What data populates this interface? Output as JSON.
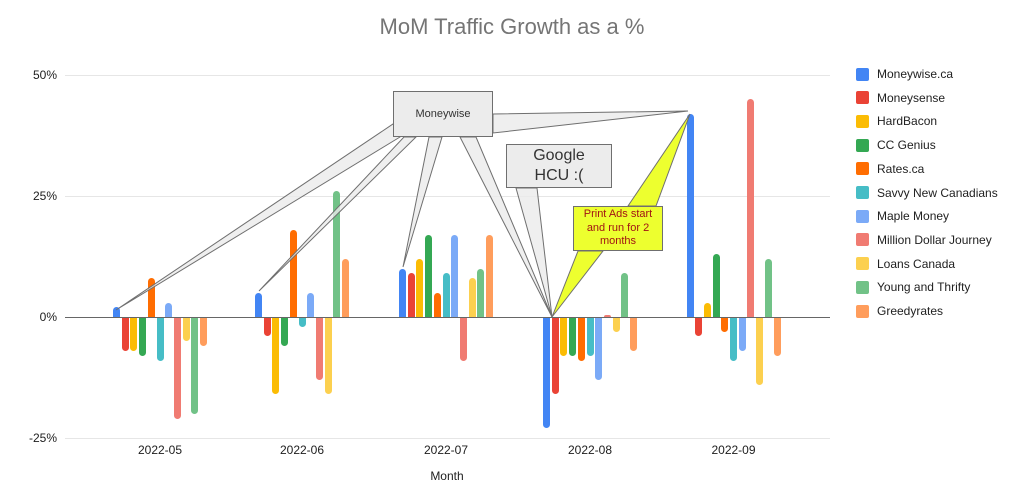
{
  "chart_data": {
    "type": "bar",
    "title": "MoM Traffic Growth as a %",
    "xlabel": "Month",
    "ylabel": "",
    "ylim": [
      -25,
      50
    ],
    "grid": true,
    "legend_position": "right",
    "y_tick_values": [
      50,
      25,
      0,
      -25
    ],
    "y_tick_labels": [
      "50%",
      "25%",
      "0%",
      "-25%"
    ],
    "categories": [
      "2022-05",
      "2022-06",
      "2022-07",
      "2022-08",
      "2022-09"
    ],
    "series": [
      {
        "name": "Moneywise.ca",
        "color": "#4285F4",
        "values": [
          2,
          5,
          10,
          -23,
          42
        ]
      },
      {
        "name": "Moneysense",
        "color": "#EA4335",
        "values": [
          -7,
          -4,
          9,
          -16,
          -4
        ]
      },
      {
        "name": "HardBacon",
        "color": "#FBBC04",
        "values": [
          -7,
          -16,
          12,
          -8,
          3
        ]
      },
      {
        "name": "CC Genius",
        "color": "#34A853",
        "values": [
          -8,
          -6,
          17,
          -8,
          13
        ]
      },
      {
        "name": "Rates.ca",
        "color": "#FF6D01",
        "values": [
          8,
          18,
          5,
          -9,
          -3
        ]
      },
      {
        "name": "Savvy New Canadians",
        "color": "#46BDC6",
        "values": [
          -9,
          -2,
          9,
          -8,
          -9
        ]
      },
      {
        "name": "Maple Money",
        "color": "#7BAAF7",
        "values": [
          3,
          5,
          17,
          -13,
          -7
        ]
      },
      {
        "name": "Million Dollar Journey",
        "color": "#F07B72",
        "values": [
          -21,
          -13,
          -9,
          0.5,
          45
        ]
      },
      {
        "name": "Loans Canada",
        "color": "#FCD04F",
        "values": [
          -5,
          -16,
          8,
          -3,
          -14
        ]
      },
      {
        "name": "Young and Thrifty",
        "color": "#71C287",
        "values": [
          -20,
          26,
          10,
          9,
          12
        ]
      },
      {
        "name": "Greedyrates",
        "color": "#FF9D5C",
        "values": [
          -6,
          12,
          17,
          -7,
          -8
        ]
      }
    ],
    "annotations": [
      {
        "text": "Moneywise",
        "style": "gray-callout",
        "points_to": "Moneywise.ca bars in all five months"
      },
      {
        "text": "Google\nHCU :(",
        "style": "gray-callout",
        "points_to": "2022-08 Moneywise.ca bar"
      },
      {
        "text": "Print Ads start and run for 2 months",
        "style": "yellow-callout",
        "points_to": "2022-08 and 2022-09 Moneywise.ca bars"
      }
    ]
  },
  "callouts": {
    "moneywise": {
      "text": "Moneywise",
      "fill": "#ececec",
      "text_color": "#333333"
    },
    "google_hcu": {
      "text": "Google\nHCU :(",
      "fill": "#ececec",
      "text_color": "#333333"
    },
    "print_ads": {
      "text": "Print Ads start and run for 2 months",
      "fill": "#edff2f",
      "text_color": "#a11414"
    }
  }
}
